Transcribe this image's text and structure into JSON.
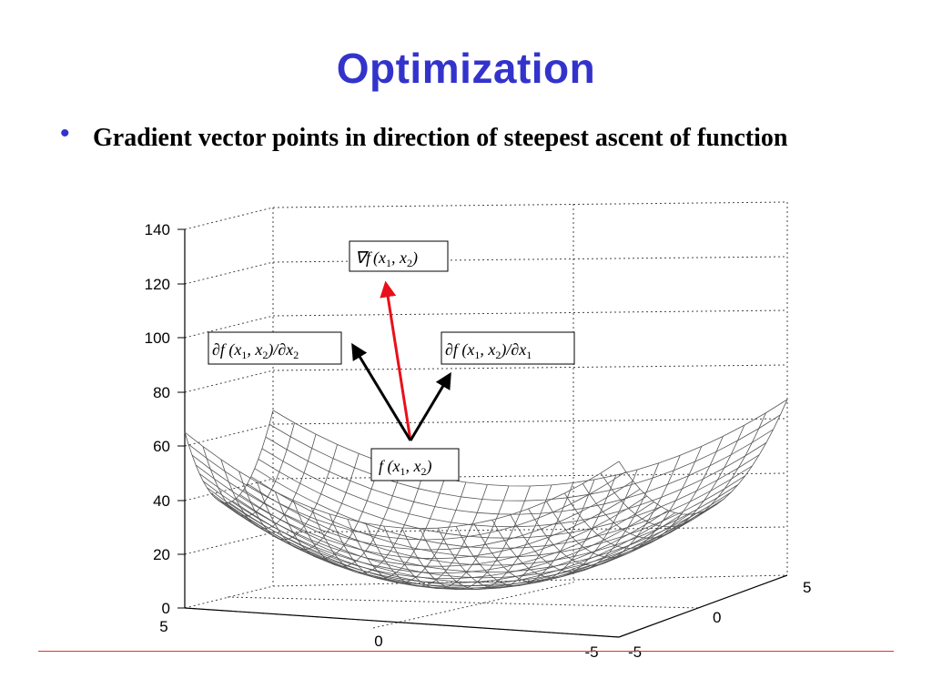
{
  "slide": {
    "title": "Optimization",
    "bullet_symbol": "•",
    "bullet_text": "Gradient vector points in direction of steepest ascent of function"
  },
  "labels": {
    "grad_nabla": "∇f",
    "grad_f": "(x",
    "grad_s1": "1",
    "grad_mid": ", x",
    "grad_s2": "2",
    "grad_end": ")",
    "dx2_pre": "∂f (x",
    "dx2_s1": "1",
    "dx2_mid": ", x",
    "dx2_s2": "2",
    "dx2_post": ")/∂x",
    "dx2_s3": "2",
    "dx1_pre": "∂f (x",
    "dx1_s1": "1",
    "dx1_mid": ", x",
    "dx1_s2": "2",
    "dx1_post": ")/∂x",
    "dx1_s3": "1",
    "f_pre": "f (x",
    "f_s1": "1",
    "f_mid": ", x",
    "f_s2": "2",
    "f_end": ")"
  },
  "chart_data": {
    "type": "surface",
    "function": "x1^2 + x2^2 (paraboloid)",
    "z_ticks": [
      "140",
      "120",
      "100",
      "80",
      "60",
      "40",
      "20",
      "0"
    ],
    "x_ticks": [
      "5",
      "0",
      "-5"
    ],
    "y_ticks": [
      "5",
      "0",
      "-5"
    ],
    "zlim": [
      0,
      140
    ],
    "xlim": [
      -5,
      5
    ],
    "ylim": [
      -5,
      5
    ],
    "colors": {
      "arrow_gradient": "#e8101a",
      "arrow_partial": "#000000",
      "mesh": "#555555"
    }
  }
}
